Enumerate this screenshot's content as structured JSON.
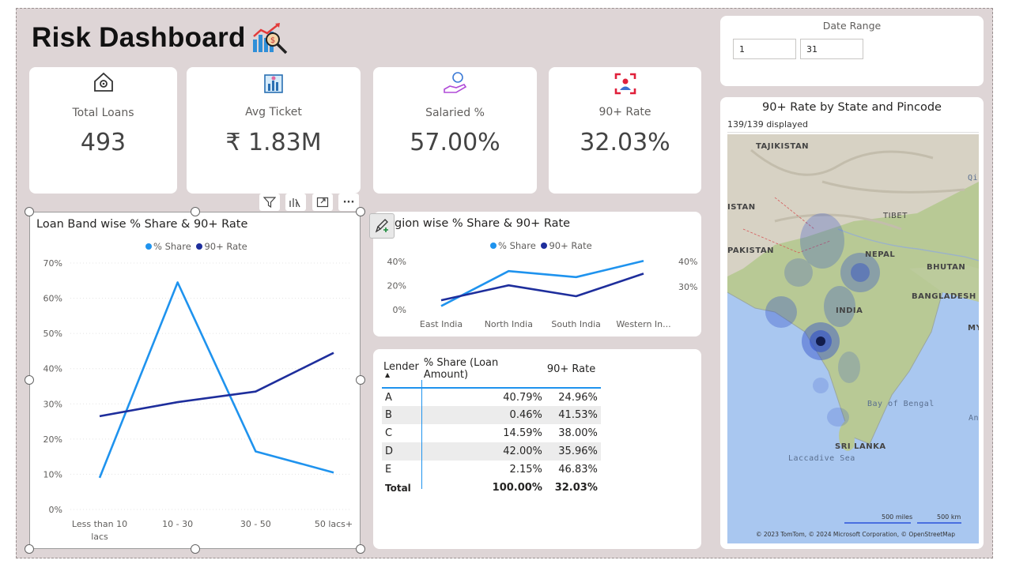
{
  "header": {
    "title": "Risk Dashboard",
    "icon": "chart-magnifier-icon"
  },
  "kpis": [
    {
      "label": "Total Loans",
      "value": "493",
      "icon": "house-gear-icon"
    },
    {
      "label": "Avg Ticket",
      "value": "₹ 1.83M",
      "icon": "building-chart-icon"
    },
    {
      "label": "Salaried %",
      "value": "57.00%",
      "icon": "hand-coin-icon"
    },
    {
      "label": "90+ Rate",
      "value": "32.03%",
      "icon": "focus-person-icon"
    }
  ],
  "date_range": {
    "title": "Date Range",
    "from": "1",
    "to": "31"
  },
  "visual_toolbar": {
    "filter_icon": "filter-icon",
    "drill_icon": "drill-icon",
    "focus_icon": "focus-mode-icon",
    "more_label": "···"
  },
  "loan_band_chart": {
    "title": "Loan Band wise % Share & 90+ Rate",
    "legend": [
      "% Share",
      "90+ Rate"
    ]
  },
  "region_chart": {
    "title": "gion wise % Share & 90+ Rate",
    "legend": [
      "% Share",
      "90+ Rate"
    ]
  },
  "lender_table": {
    "headers": [
      "Lender",
      "% Share (Loan Amount)",
      "90+ Rate"
    ],
    "rows": [
      [
        "A",
        "40.79%",
        "24.96%"
      ],
      [
        "B",
        "0.46%",
        "41.53%"
      ],
      [
        "C",
        "14.59%",
        "38.00%"
      ],
      [
        "D",
        "42.00%",
        "35.96%"
      ],
      [
        "E",
        "2.15%",
        "46.83%"
      ]
    ],
    "total": [
      "Total",
      "100.00%",
      "32.03%"
    ]
  },
  "map": {
    "title": "90+ Rate by State and Pincode",
    "displayed": "139/139 displayed",
    "labels": [
      "TAJIKISTAN",
      "ISTAN",
      "PAKISTAN",
      "TIBET",
      "NEPAL",
      "BHUTAN",
      "BANGLADESH",
      "INDIA",
      "MY",
      "SRI LANKA"
    ],
    "sea_labels": [
      "Bay of Bengal",
      "Laccadive Sea",
      "An",
      "Qi"
    ],
    "scale": [
      "500 miles",
      "500 km"
    ],
    "attribution": "© 2023 TomTom, © 2024 Microsoft Corporation, © OpenStreetMap"
  },
  "chart_data": [
    {
      "type": "line",
      "title": "Loan Band wise % Share & 90+ Rate",
      "categories": [
        "Less than 10 lacs",
        "10 - 30",
        "30 - 50",
        "50 lacs+"
      ],
      "series": [
        {
          "name": "% Share",
          "color": "#1f93ee",
          "values": [
            9,
            64.5,
            16.5,
            10.5
          ]
        },
        {
          "name": "90+ Rate",
          "color": "#1e2e9c",
          "values": [
            26.5,
            30.5,
            33.5,
            44.5
          ]
        }
      ],
      "ylim": [
        0,
        70
      ],
      "yticks": [
        "0%",
        "10%",
        "20%",
        "30%",
        "40%",
        "50%",
        "60%",
        "70%"
      ],
      "grid": true,
      "legend": "top-center"
    },
    {
      "type": "line",
      "title": "gion wise % Share & 90+ Rate",
      "categories": [
        "East India",
        "North India",
        "South India",
        "Western In..."
      ],
      "series": [
        {
          "name": "% Share",
          "color": "#1f93ee",
          "axis": "left",
          "values": [
            3,
            32,
            27,
            40.5
          ]
        },
        {
          "name": "90+ Rate",
          "color": "#1e2e9c",
          "axis": "right",
          "values": [
            24.7,
            30.6,
            26.3,
            35.2
          ]
        }
      ],
      "ylim": [
        0,
        40
      ],
      "y2lim": [
        21,
        40
      ],
      "yticks": [
        "0%",
        "20%",
        "40%"
      ],
      "y2ticks": [
        "30%",
        "40%"
      ],
      "legend": "top-center"
    }
  ]
}
